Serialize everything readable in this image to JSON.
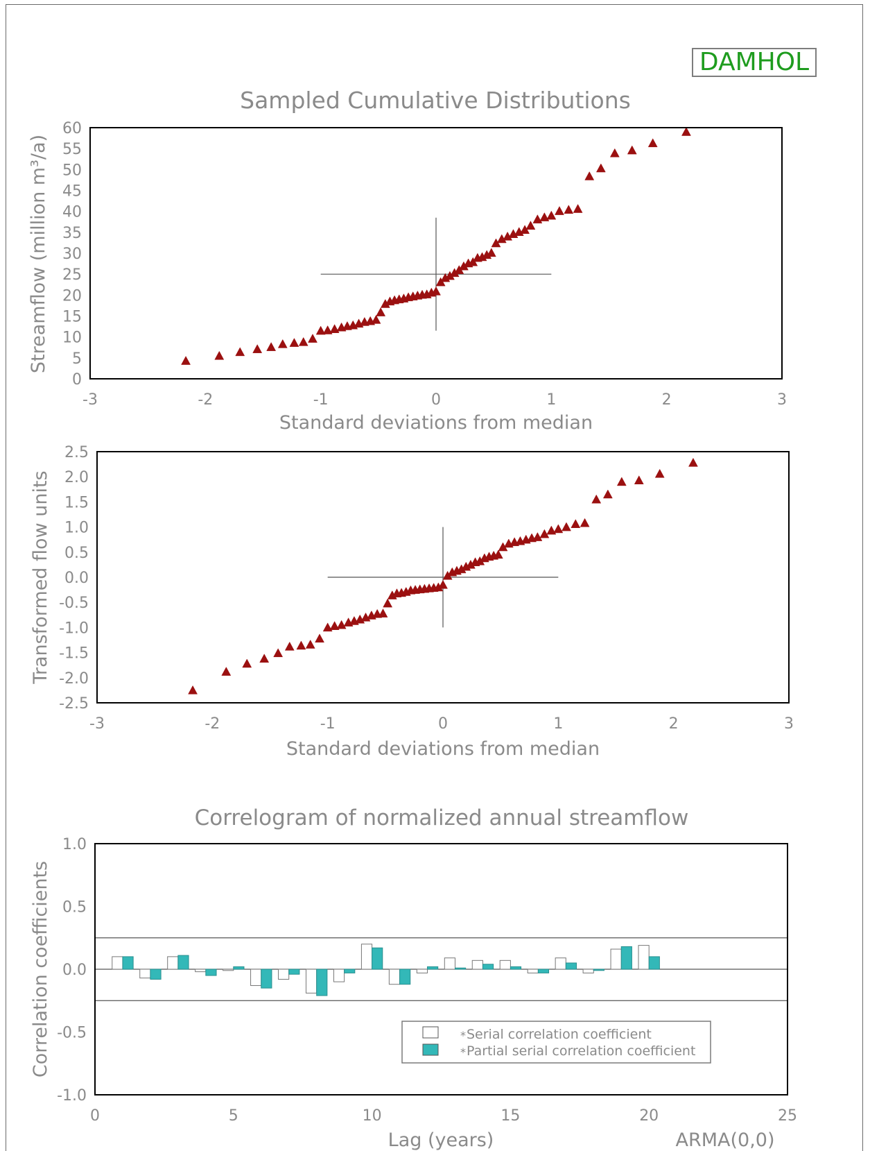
{
  "station_label": "DAMHOL",
  "model_label": "ARMA(0,0)",
  "colors": {
    "text": "#8a8a8a",
    "marker": "#9b1010",
    "partial_bar": "#33b8b8",
    "station_text": "#1e9c1e"
  },
  "chart_data": [
    {
      "type": "scatter",
      "title": "Sampled Cumulative Distributions",
      "xlabel": "Standard deviations from median",
      "ylabel": "Streamflow (million m³/a)",
      "xlim": [
        -3,
        3
      ],
      "ylim": [
        0,
        60
      ],
      "xticks": [
        "-3",
        "-2",
        "-1",
        "0",
        "1",
        "2",
        "3"
      ],
      "yticks": [
        "0",
        "5",
        "10",
        "15",
        "20",
        "25",
        "30",
        "35",
        "40",
        "45",
        "50",
        "55",
        "60"
      ],
      "crosshair": {
        "x": 0,
        "y": 25,
        "x_range": [
          -1,
          1
        ],
        "y_range": [
          11.5,
          38.5
        ]
      },
      "marker": "triangle",
      "x": [
        -2.17,
        -1.88,
        -1.7,
        -1.55,
        -1.43,
        -1.33,
        -1.23,
        -1.15,
        -1.07,
        -1.0,
        -0.94,
        -0.88,
        -0.82,
        -0.77,
        -0.72,
        -0.67,
        -0.62,
        -0.57,
        -0.52,
        -0.48,
        -0.44,
        -0.4,
        -0.36,
        -0.32,
        -0.28,
        -0.24,
        -0.2,
        -0.16,
        -0.12,
        -0.08,
        -0.04,
        0.0,
        0.04,
        0.08,
        0.12,
        0.16,
        0.2,
        0.24,
        0.28,
        0.32,
        0.36,
        0.4,
        0.44,
        0.48,
        0.52,
        0.57,
        0.62,
        0.67,
        0.72,
        0.77,
        0.82,
        0.88,
        0.94,
        1.0,
        1.07,
        1.15,
        1.23,
        1.33,
        1.43,
        1.55,
        1.7,
        1.88,
        2.17
      ],
      "y": [
        4.3,
        5.5,
        6.4,
        7.1,
        7.6,
        8.3,
        8.6,
        8.8,
        9.6,
        11.5,
        11.6,
        11.9,
        12.3,
        12.6,
        12.8,
        13.2,
        13.6,
        13.8,
        14.1,
        15.9,
        17.9,
        18.5,
        18.8,
        19.0,
        19.2,
        19.5,
        19.7,
        19.9,
        20.1,
        20.2,
        20.6,
        20.9,
        23.1,
        24.1,
        24.6,
        25.3,
        26.0,
        26.9,
        27.6,
        27.9,
        28.9,
        29.1,
        29.6,
        30.1,
        32.4,
        33.4,
        34.0,
        34.6,
        35.1,
        35.6,
        36.6,
        38.1,
        38.6,
        39.0,
        40.1,
        40.4,
        40.6,
        48.4,
        50.3,
        53.9,
        54.6,
        56.3,
        59.0
      ]
    },
    {
      "type": "scatter",
      "title": "",
      "xlabel": "Standard deviations from median",
      "ylabel": "Transformed flow units",
      "xlim": [
        -3,
        3
      ],
      "ylim": [
        -2.5,
        2.5
      ],
      "xticks": [
        "-3",
        "-2",
        "-1",
        "0",
        "1",
        "2",
        "3"
      ],
      "yticks": [
        "-2.5",
        "-2.0",
        "-1.5",
        "-1.0",
        "-0.5",
        "0.0",
        "0.5",
        "1.0",
        "1.5",
        "2.0",
        "2.5"
      ],
      "crosshair": {
        "x": 0,
        "y": 0,
        "x_range": [
          -1,
          1
        ],
        "y_range": [
          -1,
          1
        ]
      },
      "marker": "triangle",
      "x": [
        -2.17,
        -1.88,
        -1.7,
        -1.55,
        -1.43,
        -1.33,
        -1.23,
        -1.15,
        -1.07,
        -1.0,
        -0.94,
        -0.88,
        -0.82,
        -0.77,
        -0.72,
        -0.67,
        -0.62,
        -0.57,
        -0.52,
        -0.48,
        -0.44,
        -0.4,
        -0.36,
        -0.32,
        -0.28,
        -0.24,
        -0.2,
        -0.16,
        -0.12,
        -0.08,
        -0.04,
        0.0,
        0.04,
        0.08,
        0.12,
        0.16,
        0.2,
        0.24,
        0.28,
        0.32,
        0.36,
        0.4,
        0.44,
        0.48,
        0.52,
        0.57,
        0.62,
        0.67,
        0.72,
        0.77,
        0.82,
        0.88,
        0.94,
        1.0,
        1.07,
        1.15,
        1.23,
        1.33,
        1.43,
        1.55,
        1.7,
        1.88,
        2.17
      ],
      "y": [
        -2.25,
        -1.88,
        -1.72,
        -1.62,
        -1.51,
        -1.38,
        -1.36,
        -1.34,
        -1.22,
        -1.0,
        -0.97,
        -0.95,
        -0.9,
        -0.87,
        -0.84,
        -0.8,
        -0.76,
        -0.73,
        -0.72,
        -0.52,
        -0.36,
        -0.32,
        -0.31,
        -0.29,
        -0.26,
        -0.25,
        -0.24,
        -0.23,
        -0.22,
        -0.21,
        -0.2,
        -0.15,
        0.03,
        0.1,
        0.13,
        0.16,
        0.21,
        0.25,
        0.3,
        0.32,
        0.38,
        0.41,
        0.43,
        0.45,
        0.6,
        0.67,
        0.7,
        0.72,
        0.75,
        0.78,
        0.8,
        0.86,
        0.93,
        0.96,
        1.0,
        1.06,
        1.08,
        1.55,
        1.65,
        1.9,
        1.93,
        2.06,
        2.28
      ]
    },
    {
      "type": "bar",
      "title": "Correlogram of normalized annual streamflow",
      "xlabel": "Lag (years)",
      "ylabel": "Correlation coefficients",
      "xlim": [
        0,
        25
      ],
      "ylim": [
        -1.0,
        1.0
      ],
      "xticks": [
        "0",
        "5",
        "10",
        "15",
        "20",
        "25"
      ],
      "yticks": [
        "-1.0",
        "-0.5",
        "0.0",
        "0.5",
        "1.0"
      ],
      "confidence_limits": [
        0.25,
        -0.25
      ],
      "x": [
        1,
        2,
        3,
        4,
        5,
        6,
        7,
        8,
        9,
        10,
        11,
        12,
        13,
        14,
        15,
        16,
        17,
        18,
        19,
        20
      ],
      "series": [
        {
          "name": "Serial correlation coefficient",
          "values": [
            0.1,
            -0.07,
            0.1,
            -0.02,
            -0.01,
            -0.13,
            -0.08,
            -0.19,
            -0.1,
            0.2,
            -0.12,
            -0.03,
            0.09,
            0.07,
            0.07,
            -0.03,
            0.09,
            -0.03,
            0.16,
            0.19
          ]
        },
        {
          "name": "Partial serial correlation coefficient",
          "values": [
            0.1,
            -0.08,
            0.11,
            -0.05,
            0.02,
            -0.15,
            -0.04,
            -0.21,
            -0.03,
            0.17,
            -0.12,
            0.02,
            0.01,
            0.04,
            0.02,
            -0.03,
            0.05,
            -0.01,
            0.18,
            0.1
          ]
        }
      ],
      "legend_position": "bottom-right"
    }
  ]
}
